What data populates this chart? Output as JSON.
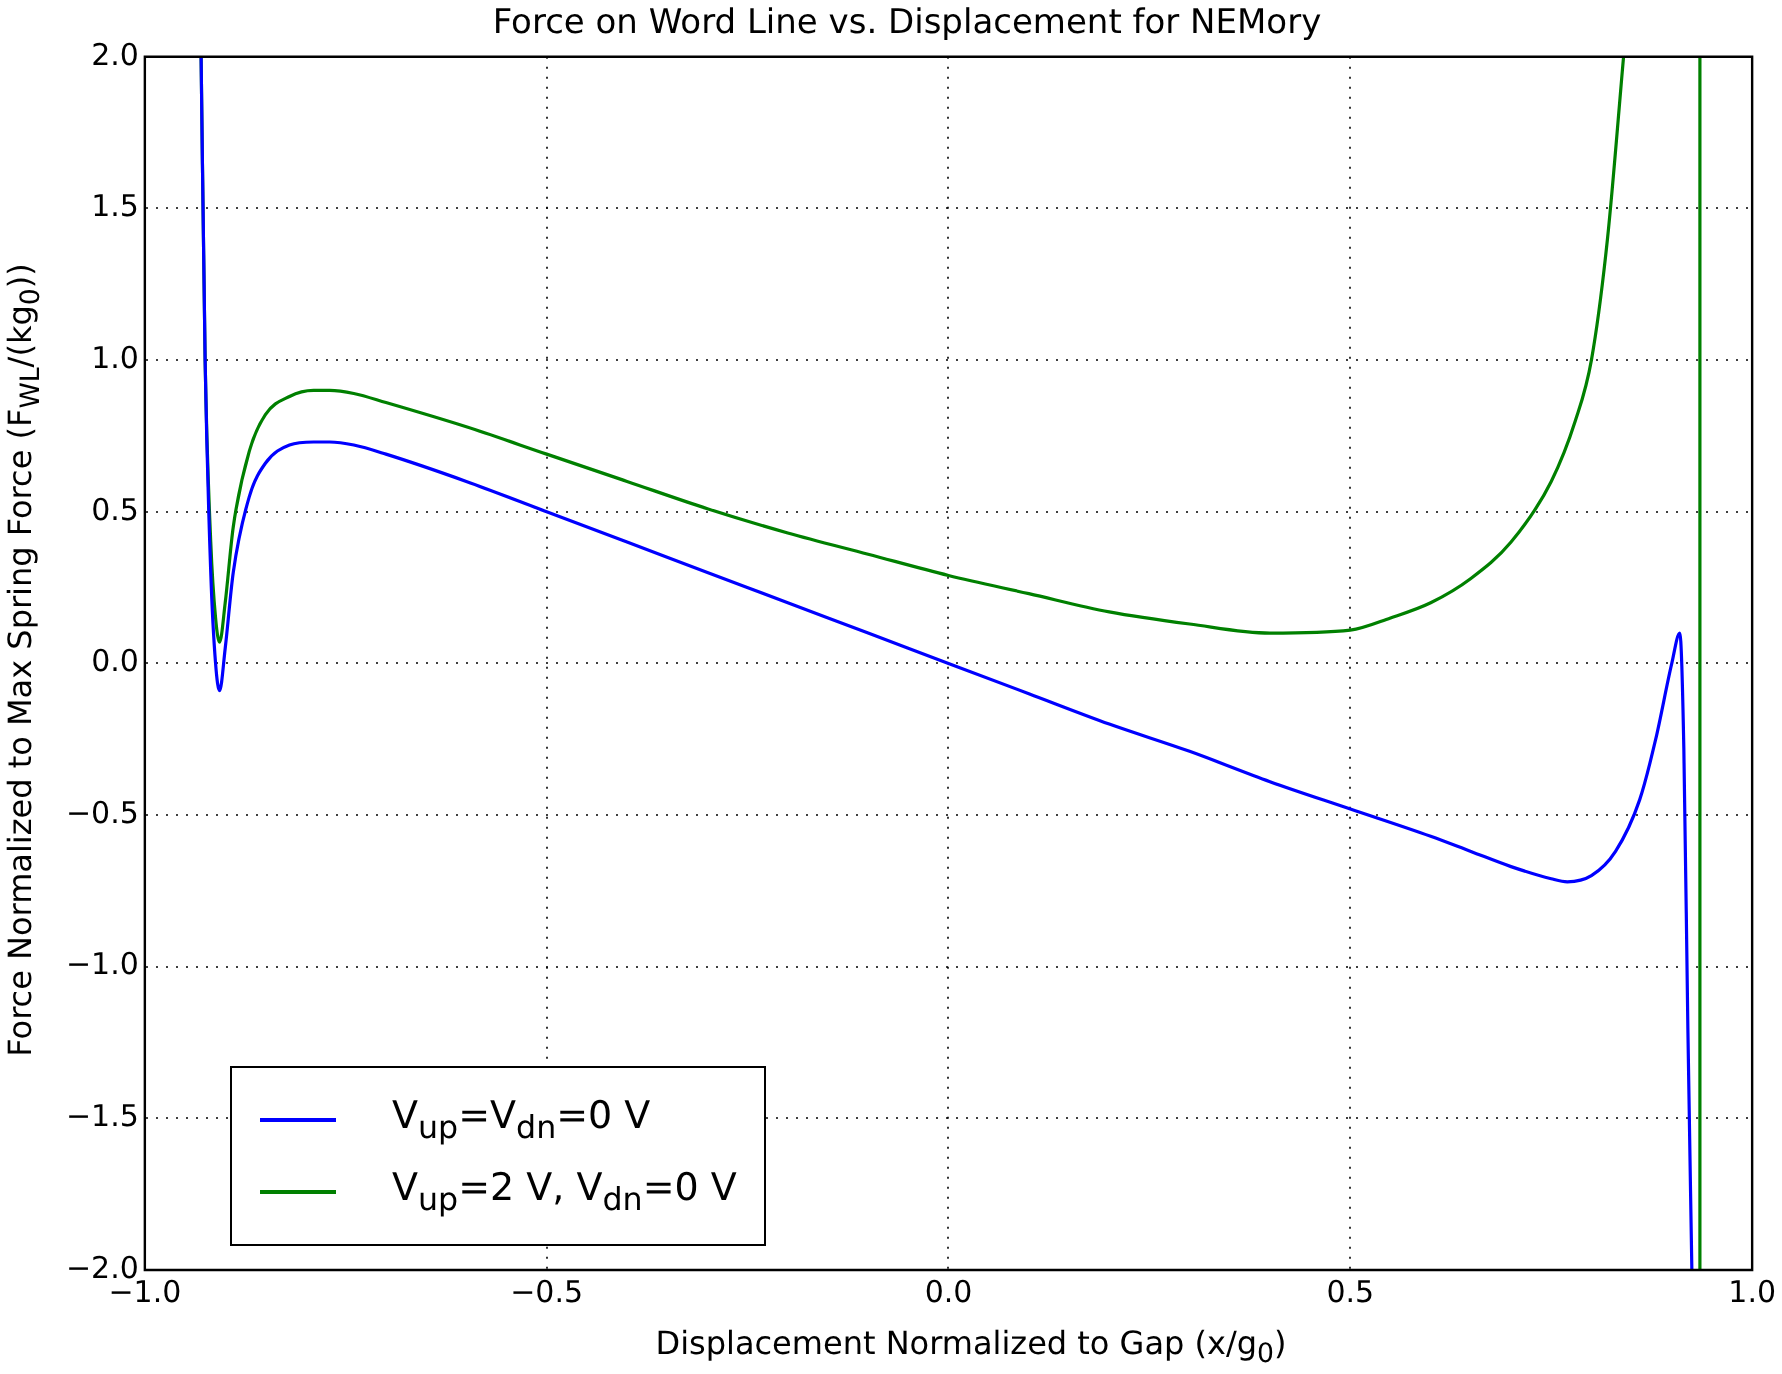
{
  "chart_data": {
    "type": "line",
    "title": "Force on Word Line vs. Displacement for NEMory",
    "xlabel": "Displacement Normalized to Gap (x/g$_{0}$)",
    "ylabel": "Force Normalized to Max Spring Force (F$_{WL}$/(kg$_{0}$))",
    "xlim": [
      -1.0,
      1.0
    ],
    "ylim": [
      -2.0,
      2.0
    ],
    "xticks": [
      {
        "value": -1,
        "label": "−1.0"
      },
      {
        "value": -0.5,
        "label": "−0.5"
      },
      {
        "value": 0,
        "label": "0.0"
      },
      {
        "value": 0.5,
        "label": "0.5"
      },
      {
        "value": 1,
        "label": "1.0"
      }
    ],
    "yticks": [
      {
        "value": -2,
        "label": "−2.0"
      },
      {
        "value": -1.5,
        "label": "−1.5"
      },
      {
        "value": -1,
        "label": "−1.0"
      },
      {
        "value": -0.5,
        "label": "−0.5"
      },
      {
        "value": 0,
        "label": "0.0"
      },
      {
        "value": 0.5,
        "label": "0.5"
      },
      {
        "value": 1,
        "label": "1.0"
      },
      {
        "value": 1.5,
        "label": "1.5"
      },
      {
        "value": 2,
        "label": "2.0"
      }
    ],
    "grid": true,
    "legend": "bottom left",
    "marker": "none",
    "line_style": "solid",
    "series": [
      {
        "name": "V$_{up}$=V$_{dn}$=0 V",
        "color": "#0000ff",
        "x": [
          -0.93,
          -0.925,
          -0.918,
          -0.912,
          -0.907,
          -0.9,
          -0.89,
          -0.87,
          -0.85,
          -0.82,
          -0.79,
          -0.77,
          -0.74,
          -0.7,
          -0.6,
          -0.5,
          -0.4,
          -0.3,
          -0.2,
          -0.1,
          0,
          0.1,
          0.2,
          0.3,
          0.4,
          0.5,
          0.6,
          0.65,
          0.7,
          0.75,
          0.77,
          0.8,
          0.83,
          0.86,
          0.88,
          0.9,
          0.91,
          0.915,
          0.92,
          0.925
        ],
        "values": [
          2,
          1.0,
          0.3,
          0.0,
          -0.09,
          0.05,
          0.3,
          0.55,
          0.66,
          0.72,
          0.73,
          0.73,
          0.72,
          0.69,
          0.6,
          0.5,
          0.4,
          0.3,
          0.2,
          0.1,
          0,
          -0.1,
          -0.2,
          -0.29,
          -0.39,
          -0.48,
          -0.57,
          -0.62,
          -0.67,
          -0.71,
          -0.72,
          -0.7,
          -0.62,
          -0.45,
          -0.25,
          0.0,
          0.1,
          -0.28,
          -1.2,
          -2
        ]
      },
      {
        "name": "V$_{up}$=2 V, V$_{dn}$=0 V",
        "color": "#008000",
        "x": [
          -0.93,
          -0.925,
          -0.918,
          -0.912,
          -0.907,
          -0.9,
          -0.89,
          -0.87,
          -0.85,
          -0.82,
          -0.79,
          -0.77,
          -0.74,
          -0.7,
          -0.6,
          -0.5,
          -0.4,
          -0.3,
          -0.2,
          -0.1,
          0,
          0.1,
          0.2,
          0.3,
          0.4,
          0.5,
          0.55,
          0.6,
          0.65,
          0.7,
          0.75,
          0.78,
          0.8,
          0.82,
          0.84,
          0.88,
          0.935,
          0.935
        ],
        "values": [
          2,
          1.0,
          0.4,
          0.15,
          0.07,
          0.2,
          0.45,
          0.7,
          0.82,
          0.88,
          0.9,
          0.9,
          0.89,
          0.86,
          0.78,
          0.69,
          0.6,
          0.51,
          0.43,
          0.36,
          0.29,
          0.23,
          0.17,
          0.13,
          0.1,
          0.11,
          0.15,
          0.2,
          0.28,
          0.4,
          0.6,
          0.8,
          1.0,
          1.4,
          2,
          null,
          2,
          -2
        ]
      }
    ]
  }
}
